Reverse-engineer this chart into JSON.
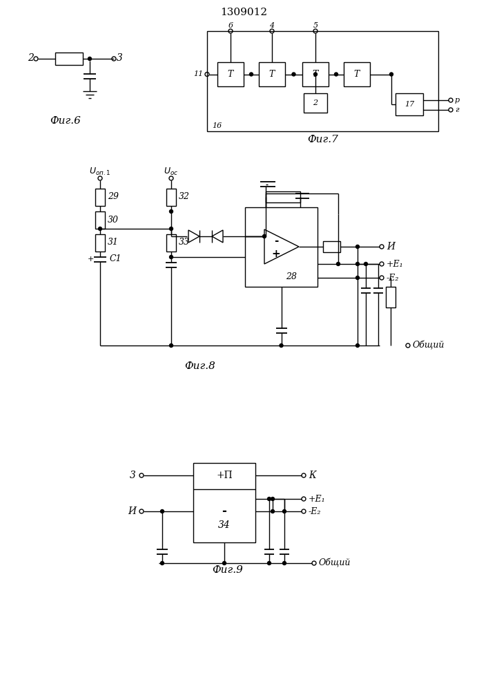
{
  "title": "1309012",
  "bg_color": "#ffffff",
  "line_color": "#000000",
  "fig6_label": "Фиг.6",
  "fig7_label": "Фиг.7",
  "fig8_label": "Фиг.8",
  "fig9_label": "Фиг.9"
}
